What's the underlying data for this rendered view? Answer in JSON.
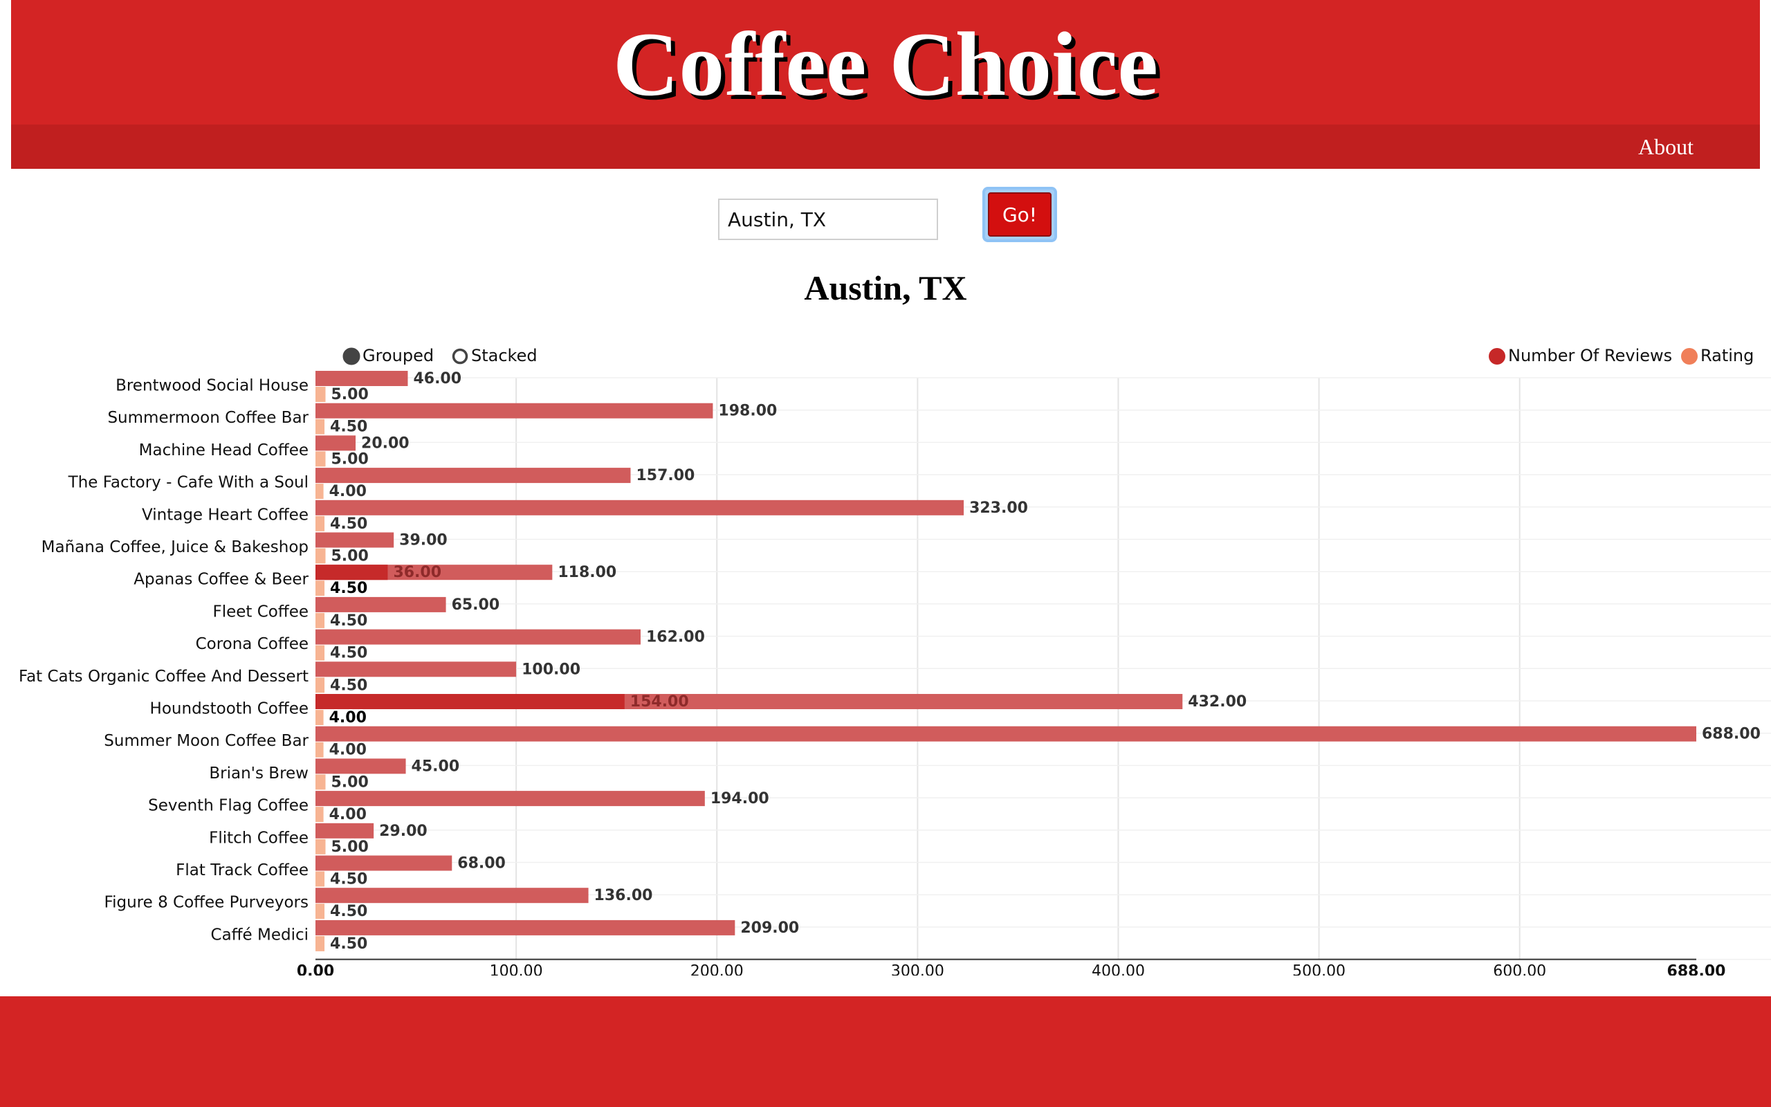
{
  "site": {
    "title": "Coffee Choice",
    "nav_about": "About"
  },
  "search": {
    "value": "Austin, TX",
    "button_label": "Go!"
  },
  "chart_title": "Austin, TX",
  "controls": {
    "grouped_label": "Grouped",
    "stacked_label": "Stacked",
    "selected": "grouped"
  },
  "colors": {
    "brand_red": "#d32424",
    "nav_red": "#c01f1f",
    "reviews_bar": "#d15c5c",
    "reviews_legend": "#c62828",
    "rating_bar": "#f7b493",
    "rating_legend": "#f07f59",
    "highlight_bar": "#c62a2a"
  },
  "chart_data": {
    "type": "bar",
    "orientation": "horizontal",
    "mode": "grouped",
    "categories": [
      "Brentwood Social House",
      "Summermoon Coffee Bar",
      "Machine Head Coffee",
      "The Factory - Cafe With a Soul",
      "Vintage Heart Coffee",
      "Mañana Coffee, Juice & Bakeshop",
      "Apanas Coffee & Beer",
      "Fleet Coffee",
      "Corona Coffee",
      "Fat Cats Organic Coffee And Dessert",
      "Houndstooth Coffee",
      "Summer Moon Coffee Bar",
      "Brian's Brew",
      "Seventh Flag Coffee",
      "Flitch Coffee",
      "Flat Track Coffee",
      "Figure 8 Coffee Purveyors",
      "Caffé Medici"
    ],
    "series": [
      {
        "name": "Number Of Reviews",
        "values": [
          46,
          198,
          20,
          157,
          323,
          39,
          118,
          65,
          162,
          100,
          432,
          688,
          45,
          194,
          29,
          68,
          136,
          209
        ],
        "labels": [
          "46.00",
          "198.00",
          "20.00",
          "157.00",
          "323.00",
          "39.00",
          "118.00",
          "65.00",
          "162.00",
          "100.00",
          "432.00",
          "688.00",
          "45.00",
          "194.00",
          "29.00",
          "68.00",
          "136.00",
          "209.00"
        ]
      },
      {
        "name": "Rating",
        "values": [
          5,
          4.5,
          5,
          4,
          4.5,
          5,
          4.5,
          4.5,
          4.5,
          4.5,
          4,
          4,
          5,
          4,
          5,
          4.5,
          4.5,
          4.5
        ],
        "labels": [
          "5.00",
          "4.50",
          "5.00",
          "4.00",
          "4.50",
          "5.00",
          "4.50",
          "4.50",
          "4.50",
          "4.50",
          "4.00",
          "4.00",
          "5.00",
          "4.00",
          "5.00",
          "4.50",
          "4.50",
          "4.50"
        ]
      }
    ],
    "highlights": [
      {
        "category_index": 6,
        "value": 36,
        "label": "36.00"
      },
      {
        "category_index": 10,
        "value": 154,
        "label": "154.00"
      }
    ],
    "x_ticks": [
      0,
      100,
      200,
      300,
      400,
      500,
      600,
      688
    ],
    "x_tick_labels": [
      "0.00",
      "100.00",
      "200.00",
      "300.00",
      "400.00",
      "500.00",
      "600.00",
      "688.00"
    ],
    "xlim": [
      0,
      688
    ],
    "grid": true,
    "legend_position": "top-right"
  }
}
